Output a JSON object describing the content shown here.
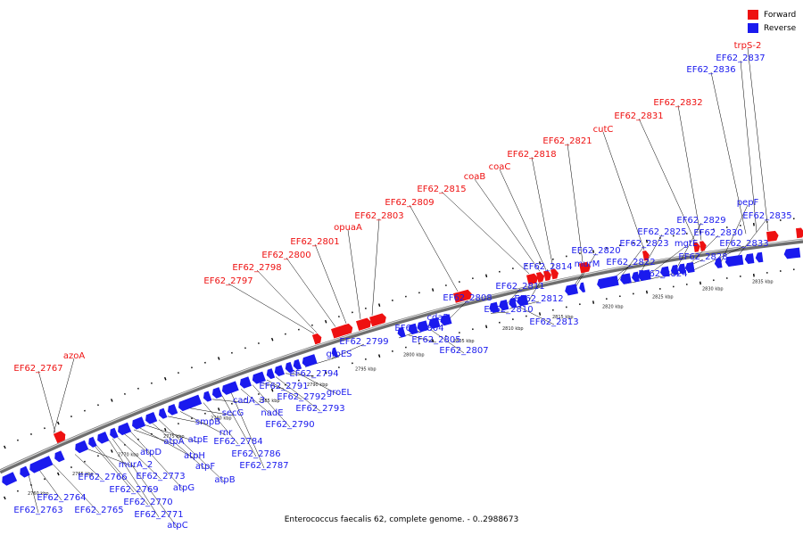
{
  "caption": "Enterococcus faecalis 62, complete genome. - 0..2988673",
  "legend": [
    {
      "name": "Forward",
      "color": "#ee1111"
    },
    {
      "name": "Reverse",
      "color": "#1a1aee"
    }
  ],
  "colors": {
    "forward": "#ee1111",
    "reverse": "#1a1aee",
    "backbone": "#6e6e6e",
    "leader": "#000000"
  },
  "kbp_labels": [
    "2760 kbp",
    "2765 kbp",
    "2770 kbp",
    "2775 kbp",
    "2780 kbp",
    "2785 kbp",
    "2790 kbp",
    "2795 kbp",
    "2800 kbp",
    "2805 kbp",
    "2810 kbp",
    "2815 kbp",
    "2820 kbp",
    "2825 kbp",
    "2830 kbp",
    "2835 kbp"
  ],
  "forward_genes": [
    {
      "name": "azoA"
    },
    {
      "name": "EF62_2767"
    },
    {
      "name": "EF62_2797"
    },
    {
      "name": "EF62_2798"
    },
    {
      "name": "EF62_2800"
    },
    {
      "name": "EF62_2801"
    },
    {
      "name": "opuaA"
    },
    {
      "name": "EF62_2803"
    },
    {
      "name": "EF62_2809"
    },
    {
      "name": "EF62_2815"
    },
    {
      "name": "coaB"
    },
    {
      "name": "coaC"
    },
    {
      "name": "EF62_2818"
    },
    {
      "name": "EF62_2821"
    },
    {
      "name": "cutC"
    },
    {
      "name": "EF62_2831"
    },
    {
      "name": "EF62_2832"
    },
    {
      "name": "trpS-2"
    }
  ],
  "reverse_genes_top": [
    {
      "name": "EF62_2837"
    },
    {
      "name": "EF62_2836"
    }
  ],
  "reverse_genes": [
    {
      "name": "EF62_2763"
    },
    {
      "name": "EF62_2764"
    },
    {
      "name": "EF62_2765"
    },
    {
      "name": "EF62_2766"
    },
    {
      "name": "murA_2"
    },
    {
      "name": "EF62_2769"
    },
    {
      "name": "EF62_2770"
    },
    {
      "name": "EF62_2771"
    },
    {
      "name": "atpC"
    },
    {
      "name": "EF62_2773"
    },
    {
      "name": "atpD"
    },
    {
      "name": "atpG"
    },
    {
      "name": "atpA"
    },
    {
      "name": "atpH"
    },
    {
      "name": "atpE"
    },
    {
      "name": "atpF"
    },
    {
      "name": "atpB"
    },
    {
      "name": "smpB"
    },
    {
      "name": "rnr"
    },
    {
      "name": "secG"
    },
    {
      "name": "EF62_2784"
    },
    {
      "name": "cadA_3"
    },
    {
      "name": "EF62_2786"
    },
    {
      "name": "EF62_2787"
    },
    {
      "name": "nadE"
    },
    {
      "name": "EF62_2790"
    },
    {
      "name": "EF62_2791"
    },
    {
      "name": "EF62_2792"
    },
    {
      "name": "EF62_2793"
    },
    {
      "name": "EF62_2794"
    },
    {
      "name": "groEL"
    },
    {
      "name": "groES"
    },
    {
      "name": "EF62_2799"
    },
    {
      "name": "EF62_2804"
    },
    {
      "name": "EF62_2805"
    },
    {
      "name": "cdaR"
    },
    {
      "name": "EF62_2807"
    },
    {
      "name": "EF62_2808"
    },
    {
      "name": "EF62_2810"
    },
    {
      "name": "EF62_2811"
    },
    {
      "name": "EF62_2812"
    },
    {
      "name": "EF62_2813"
    },
    {
      "name": "EF62_2814"
    },
    {
      "name": "murM"
    },
    {
      "name": "EF62_2820"
    },
    {
      "name": "EF62_2822"
    },
    {
      "name": "EF62_2823"
    },
    {
      "name": "EF62_2824"
    },
    {
      "name": "EF62_2825"
    },
    {
      "name": "mgtE"
    },
    {
      "name": "EF62_2828"
    },
    {
      "name": "EF62_2829"
    },
    {
      "name": "EF62_2830"
    },
    {
      "name": "EF62_2833"
    },
    {
      "name": "pepF"
    },
    {
      "name": "EF62_2835"
    }
  ]
}
